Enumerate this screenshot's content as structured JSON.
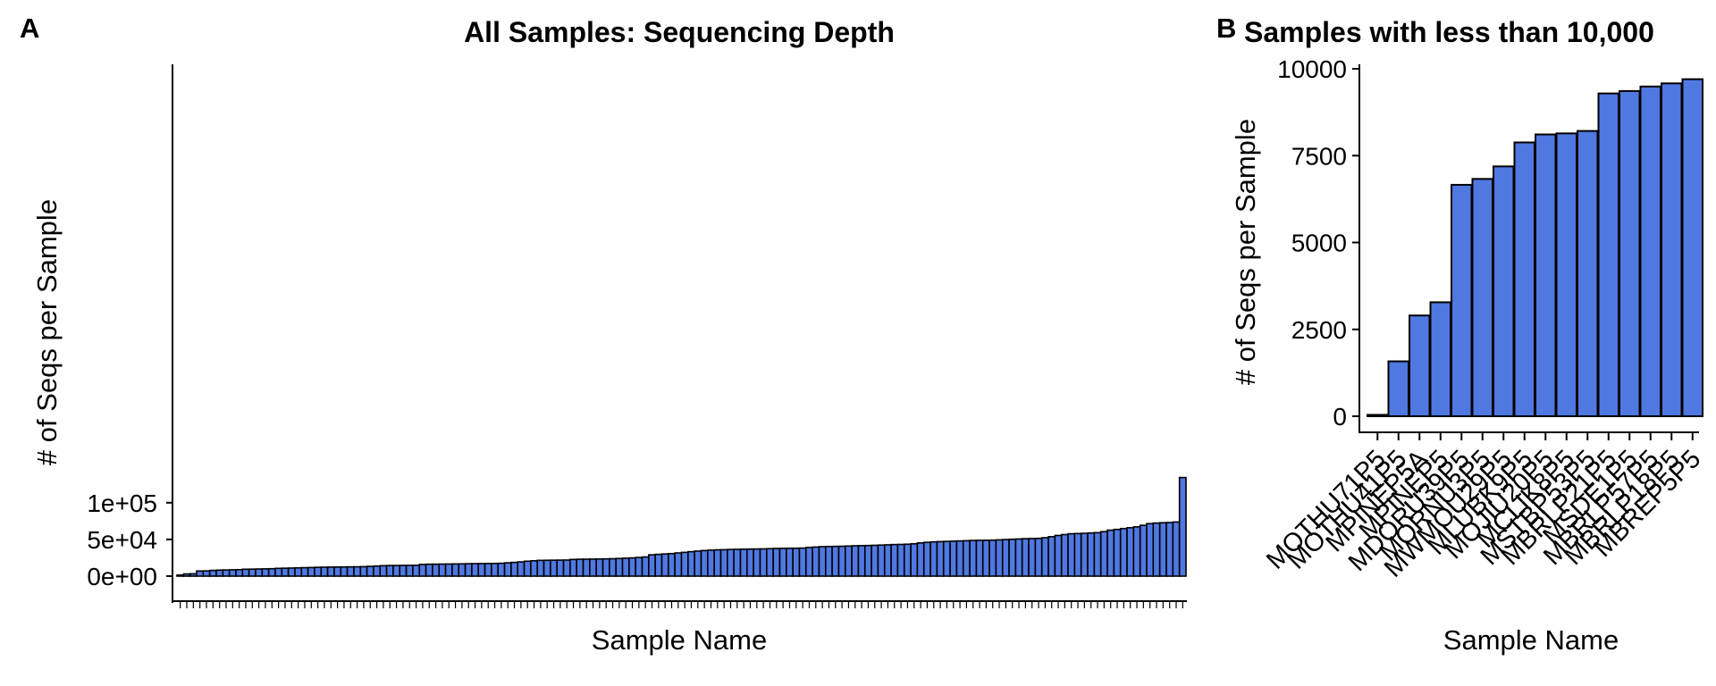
{
  "panels": {
    "a": {
      "label": "A",
      "title": "All Samples: Sequencing Depth",
      "xlabel": "Sample Name",
      "ylabel": "# of Seqs per Sample",
      "yticks": [
        "0e+00",
        "5e+04",
        "1e+05"
      ]
    },
    "b": {
      "label": "B",
      "title": "Samples with less than 10,000",
      "xlabel": "Sample Name",
      "ylabel": "# of Seqs per Sample",
      "yticks": [
        "0",
        "2500",
        "5000",
        "7500",
        "10000"
      ]
    }
  },
  "colors": {
    "bar_fill": "#4f78e0",
    "bar_stroke": "#000000"
  },
  "chart_data": [
    {
      "type": "bar",
      "title": "All Samples: Sequencing Depth",
      "xlabel": "Sample Name",
      "ylabel": "# of Seqs per Sample",
      "ylim": [
        0,
        140000
      ],
      "tick_labels_shown": false,
      "grid": false,
      "values": [
        1500,
        3000,
        3200,
        7000,
        7100,
        7800,
        8200,
        8400,
        8600,
        8800,
        9400,
        9500,
        9700,
        9900,
        10100,
        10600,
        10800,
        11000,
        11300,
        11500,
        11700,
        12000,
        12200,
        12300,
        12400,
        12500,
        12600,
        12700,
        12900,
        13300,
        13700,
        14200,
        14400,
        14500,
        14600,
        14700,
        14800,
        15900,
        16200,
        16300,
        16400,
        16500,
        16600,
        16700,
        16900,
        17000,
        17100,
        17200,
        17300,
        17500,
        18100,
        18700,
        19400,
        20300,
        20900,
        21500,
        21600,
        21700,
        21800,
        21900,
        22700,
        23000,
        23100,
        23200,
        23300,
        23500,
        23700,
        24000,
        24400,
        24800,
        25400,
        26100,
        29000,
        29700,
        30200,
        30700,
        31600,
        32400,
        33300,
        34100,
        34800,
        35400,
        35800,
        36000,
        36300,
        36500,
        36700,
        36800,
        37000,
        37100,
        37400,
        37700,
        37800,
        37900,
        38000,
        38200,
        39000,
        39600,
        40100,
        40300,
        40500,
        40700,
        41000,
        41300,
        41500,
        41700,
        42000,
        42300,
        42600,
        43000,
        43200,
        43500,
        44000,
        45200,
        46000,
        46600,
        47000,
        47300,
        47600,
        47900,
        48200,
        48600,
        48800,
        48900,
        49000,
        49400,
        49800,
        50200,
        50600,
        51000,
        51200,
        51400,
        52300,
        53700,
        55400,
        56600,
        57700,
        58000,
        58300,
        58800,
        59200,
        60600,
        62600,
        63600,
        64800,
        65900,
        67100,
        69200,
        71500,
        72300,
        72700,
        73000,
        73700,
        134300
      ]
    },
    {
      "type": "bar",
      "title": "Samples with less than 10,000",
      "xlabel": "Sample Name",
      "ylabel": "# of Seqs per Sample",
      "ylim": [
        0,
        10000
      ],
      "grid": false,
      "categories": [
        "MOTHU71P5",
        "MOTHU41P5",
        "MPINEP5A",
        "MPINEP5",
        "MDORU39P5",
        "MORNU3P5",
        "MWMOU29P5",
        "MLUBK9P5",
        "MOJIU20P5",
        "MCLIK8P5",
        "MSTBP53P5",
        "MBRLP21P5",
        "MSDE1P5",
        "MBRLP57P5",
        "MBRLP18P5",
        "MBREP5P5"
      ],
      "values": [
        40,
        1580,
        2900,
        3280,
        6660,
        6830,
        7190,
        7880,
        8110,
        8140,
        8210,
        9290,
        9360,
        9490,
        9580,
        9700
      ]
    }
  ]
}
